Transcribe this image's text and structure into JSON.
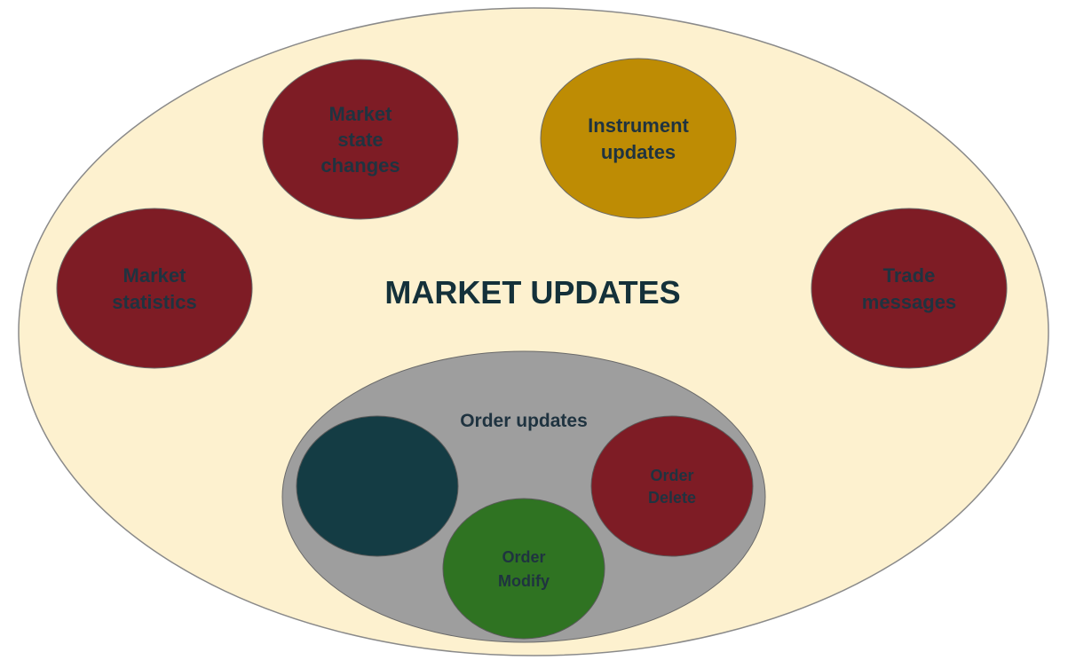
{
  "diagram": {
    "title": "MARKET UPDATES",
    "colors": {
      "outer_fill": "#fdf1cf",
      "maroon": "#7e1c25",
      "gold": "#be8c04",
      "gray": "#9e9e9e",
      "dark_teal": "#143c44",
      "green": "#2f7322",
      "label_text": "#1f3340"
    },
    "nodes": {
      "market_state_changes": [
        "Market",
        "state",
        "changes"
      ],
      "instrument_updates": [
        "Instrument",
        "updates"
      ],
      "market_statistics": [
        "Market",
        "statistics"
      ],
      "trade_messages": [
        "Trade",
        "messages"
      ]
    },
    "order_updates": {
      "label": "Order updates",
      "order_delete": [
        "Order",
        "Delete"
      ],
      "order_modify": [
        "Order",
        "Modify"
      ]
    }
  }
}
